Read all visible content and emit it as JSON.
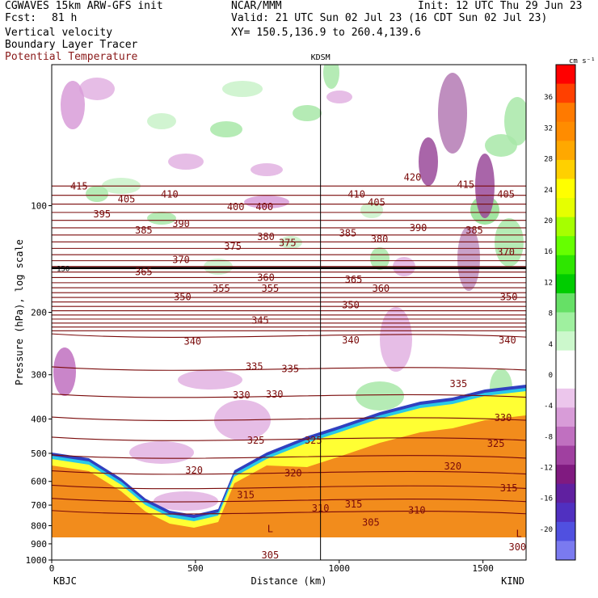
{
  "header": {
    "model": "CGWAVES 15km ARW-GFS init",
    "fcst_label": "Fcst:",
    "fcst_value": "81 h",
    "center": "NCAR/MMM",
    "init": "Init: 12 UTC Thu 29 Jun 23",
    "valid": "Valid: 21 UTC Sun 02 Jul 23 (16 CDT Sun 02 Jul 23)",
    "xy": "XY= 150.5,136.9 to 260.4,139.6",
    "field1": "Vertical velocity",
    "field2": "Boundary Layer Tracer",
    "field3": "Potential Temperature"
  },
  "colors": {
    "theta_contour": "#7a0a0a",
    "tracer_fill": "#f28c1c",
    "grid_line": "#000000"
  },
  "chart_data": {
    "type": "cross-section",
    "xlabel": "Distance (km)",
    "ylabel": "Pressure (hPa), log scale",
    "xlim": [
      0,
      1650
    ],
    "ylim": [
      1000,
      40
    ],
    "y_scale": "log",
    "x_ticks": [
      0,
      500,
      1000,
      1500
    ],
    "y_ticks": [
      100,
      200,
      300,
      400,
      500,
      600,
      700,
      800,
      900,
      1000
    ],
    "left_station": "KBJC",
    "right_station": "KIND",
    "mid_station": "KDSM",
    "mid_station_km": 935,
    "tropopause_label": "150",
    "tropopause_hpa": 150,
    "colorbar": {
      "units": "cm s⁻¹",
      "ticks": [
        36,
        32,
        28,
        24,
        20,
        16,
        12,
        8,
        4,
        0,
        -4,
        -8,
        -12,
        -16,
        -20
      ],
      "colors": [
        "#ff0000",
        "#ff4000",
        "#ff7a00",
        "#ff8c00",
        "#ffa800",
        "#ffd000",
        "#ffff00",
        "#e6ff00",
        "#a6ff00",
        "#66ff00",
        "#2ee600",
        "#00cc00",
        "#66e066",
        "#9ff09f",
        "#ccf8cc",
        "#ffffff",
        "#ffffff",
        "#ecc6ec",
        "#d89cd8",
        "#c070c0",
        "#a040a0",
        "#801a80",
        "#6020a0",
        "#5030c0",
        "#5050e0",
        "#7a7af0"
      ]
    },
    "theta_labels": [
      {
        "v": "415",
        "x": 95,
        "p": 90
      },
      {
        "v": "405",
        "x": 260,
        "p": 98
      },
      {
        "v": "410",
        "x": 410,
        "p": 95
      },
      {
        "v": "395",
        "x": 175,
        "p": 108
      },
      {
        "v": "400",
        "x": 640,
        "p": 103
      },
      {
        "v": "400",
        "x": 740,
        "p": 103
      },
      {
        "v": "385",
        "x": 320,
        "p": 120
      },
      {
        "v": "390",
        "x": 450,
        "p": 115
      },
      {
        "v": "380",
        "x": 745,
        "p": 125
      },
      {
        "v": "375",
        "x": 630,
        "p": 133
      },
      {
        "v": "375",
        "x": 820,
        "p": 130
      },
      {
        "v": "370",
        "x": 450,
        "p": 145
      },
      {
        "v": "365",
        "x": 320,
        "p": 157
      },
      {
        "v": "360",
        "x": 745,
        "p": 163
      },
      {
        "v": "355",
        "x": 590,
        "p": 175
      },
      {
        "v": "355",
        "x": 760,
        "p": 175
      },
      {
        "v": "350",
        "x": 455,
        "p": 185
      },
      {
        "v": "345",
        "x": 725,
        "p": 215
      },
      {
        "v": "340",
        "x": 490,
        "p": 247
      },
      {
        "v": "335",
        "x": 705,
        "p": 290
      },
      {
        "v": "335",
        "x": 830,
        "p": 295
      },
      {
        "v": "330",
        "x": 660,
        "p": 350
      },
      {
        "v": "330",
        "x": 775,
        "p": 348
      },
      {
        "v": "325",
        "x": 710,
        "p": 470
      },
      {
        "v": "325",
        "x": 910,
        "p": 470
      },
      {
        "v": "320",
        "x": 495,
        "p": 570
      },
      {
        "v": "320",
        "x": 840,
        "p": 580
      },
      {
        "v": "315",
        "x": 675,
        "p": 670
      },
      {
        "v": "310",
        "x": 935,
        "p": 730
      },
      {
        "v": "305",
        "x": 760,
        "p": 990
      },
      {
        "v": "410",
        "x": 1060,
        "p": 95
      },
      {
        "v": "405",
        "x": 1130,
        "p": 100
      },
      {
        "v": "420",
        "x": 1255,
        "p": 85
      },
      {
        "v": "415",
        "x": 1440,
        "p": 89
      },
      {
        "v": "405",
        "x": 1580,
        "p": 95
      },
      {
        "v": "385",
        "x": 1030,
        "p": 122
      },
      {
        "v": "380",
        "x": 1140,
        "p": 127
      },
      {
        "v": "390",
        "x": 1275,
        "p": 118
      },
      {
        "v": "385",
        "x": 1470,
        "p": 120
      },
      {
        "v": "370",
        "x": 1580,
        "p": 138
      },
      {
        "v": "365",
        "x": 1050,
        "p": 165
      },
      {
        "v": "360",
        "x": 1145,
        "p": 175
      },
      {
        "v": "350",
        "x": 1040,
        "p": 195
      },
      {
        "v": "350",
        "x": 1590,
        "p": 185
      },
      {
        "v": "340",
        "x": 1040,
        "p": 245
      },
      {
        "v": "340",
        "x": 1585,
        "p": 245
      },
      {
        "v": "335",
        "x": 1415,
        "p": 325
      },
      {
        "v": "330",
        "x": 1570,
        "p": 405
      },
      {
        "v": "325",
        "x": 1545,
        "p": 480
      },
      {
        "v": "320",
        "x": 1395,
        "p": 555
      },
      {
        "v": "315",
        "x": 1590,
        "p": 640
      },
      {
        "v": "315",
        "x": 1050,
        "p": 710
      },
      {
        "v": "310",
        "x": 1270,
        "p": 740
      },
      {
        "v": "305",
        "x": 1110,
        "p": 800
      },
      {
        "v": "300",
        "x": 1620,
        "p": 940
      },
      {
        "v": "L",
        "x": 760,
        "p": 835
      },
      {
        "v": "L",
        "x": 1625,
        "p": 860
      }
    ]
  }
}
